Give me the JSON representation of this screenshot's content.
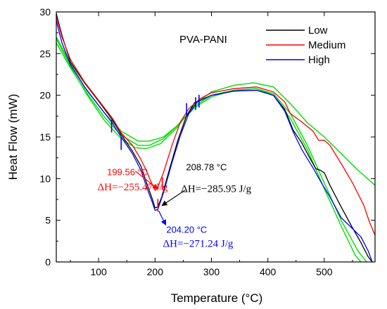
{
  "chart_data": {
    "type": "line",
    "title": "PVA-PANI",
    "xlabel": "Temperature (°C)",
    "ylabel": "Heat Flow (mW)",
    "xlim": [
      25,
      590
    ],
    "ylim": [
      0,
      30
    ],
    "x_ticks": [
      100,
      200,
      300,
      400,
      500
    ],
    "y_ticks": [
      0,
      5,
      10,
      15,
      20,
      25,
      30
    ],
    "legend_position": "top-right",
    "grid": false,
    "series": [
      {
        "name": "Low",
        "color": "#000000",
        "points": [
          [
            25,
            29.8
          ],
          [
            35,
            27.2
          ],
          [
            50,
            24.0
          ],
          [
            75,
            21.5
          ],
          [
            100,
            19.3
          ],
          [
            125,
            17.0
          ],
          [
            140,
            15.3
          ],
          [
            160,
            13.3
          ],
          [
            175,
            11.5
          ],
          [
            185,
            9.5
          ],
          [
            195,
            7.6
          ],
          [
            200,
            6.5
          ],
          [
            205,
            6.6
          ],
          [
            212,
            7.8
          ],
          [
            225,
            11.0
          ],
          [
            240,
            14.5
          ],
          [
            255,
            17.4
          ],
          [
            270,
            19.1
          ],
          [
            300,
            20.0
          ],
          [
            340,
            20.5
          ],
          [
            380,
            20.6
          ],
          [
            410,
            20.0
          ],
          [
            430,
            18.3
          ],
          [
            445,
            15.8
          ],
          [
            460,
            14.3
          ],
          [
            475,
            12.4
          ],
          [
            485,
            11.2
          ],
          [
            493,
            11.0
          ],
          [
            500,
            10.7
          ],
          [
            510,
            9.2
          ],
          [
            530,
            6.6
          ],
          [
            550,
            4.1
          ],
          [
            565,
            2.3
          ],
          [
            578,
            0.6
          ],
          [
            585,
            0.0
          ]
        ]
      },
      {
        "name": "Medium",
        "color": "#ff0000",
        "points": [
          [
            25,
            29.5
          ],
          [
            35,
            27.0
          ],
          [
            50,
            24.3
          ],
          [
            75,
            21.6
          ],
          [
            100,
            19.4
          ],
          [
            125,
            17.2
          ],
          [
            140,
            15.5
          ],
          [
            160,
            14.0
          ],
          [
            175,
            12.3
          ],
          [
            185,
            10.9
          ],
          [
            193,
            9.6
          ],
          [
            200,
            8.6
          ],
          [
            205,
            9.0
          ],
          [
            215,
            10.7
          ],
          [
            230,
            14.0
          ],
          [
            245,
            16.8
          ],
          [
            260,
            18.4
          ],
          [
            280,
            19.6
          ],
          [
            300,
            20.3
          ],
          [
            340,
            20.8
          ],
          [
            380,
            21.0
          ],
          [
            410,
            20.4
          ],
          [
            430,
            19.2
          ],
          [
            440,
            17.8
          ],
          [
            460,
            16.8
          ],
          [
            480,
            15.7
          ],
          [
            490,
            14.6
          ],
          [
            500,
            14.6
          ],
          [
            510,
            14.0
          ],
          [
            530,
            11.8
          ],
          [
            550,
            9.5
          ],
          [
            570,
            6.8
          ],
          [
            580,
            4.8
          ],
          [
            590,
            3.2
          ]
        ]
      },
      {
        "name": "High",
        "color": "#0000ff",
        "points": [
          [
            25,
            29.0
          ],
          [
            35,
            26.3
          ],
          [
            50,
            23.7
          ],
          [
            75,
            21.0
          ],
          [
            100,
            18.8
          ],
          [
            125,
            16.6
          ],
          [
            140,
            15.0
          ],
          [
            160,
            13.0
          ],
          [
            175,
            11.0
          ],
          [
            185,
            9.0
          ],
          [
            195,
            7.2
          ],
          [
            200,
            6.2
          ],
          [
            205,
            6.3
          ],
          [
            215,
            8.3
          ],
          [
            230,
            11.9
          ],
          [
            245,
            15.2
          ],
          [
            260,
            17.8
          ],
          [
            275,
            19.2
          ],
          [
            300,
            20.0
          ],
          [
            340,
            20.5
          ],
          [
            380,
            20.6
          ],
          [
            410,
            20.0
          ],
          [
            430,
            18.1
          ],
          [
            445,
            15.6
          ],
          [
            460,
            13.5
          ],
          [
            480,
            11.3
          ],
          [
            495,
            9.5
          ],
          [
            510,
            7.8
          ],
          [
            530,
            5.3
          ],
          [
            550,
            4.0
          ],
          [
            565,
            3.0
          ],
          [
            578,
            1.3
          ],
          [
            585,
            0.0
          ]
        ]
      }
    ],
    "fit_curves": {
      "color": "#00dd00",
      "curves": [
        [
          [
            25,
            27.0
          ],
          [
            50,
            23.8
          ],
          [
            80,
            20.5
          ],
          [
            110,
            17.9
          ],
          [
            140,
            15.7
          ],
          [
            170,
            14.5
          ],
          [
            190,
            14.5
          ],
          [
            215,
            15.0
          ],
          [
            240,
            16.4
          ],
          [
            270,
            18.5
          ],
          [
            300,
            19.8
          ],
          [
            340,
            20.6
          ],
          [
            380,
            20.8
          ],
          [
            410,
            20.2
          ],
          [
            440,
            17.8
          ],
          [
            470,
            14.0
          ],
          [
            500,
            9.5
          ],
          [
            530,
            5.0
          ],
          [
            560,
            1.3
          ],
          [
            575,
            0.0
          ]
        ],
        [
          [
            25,
            26.3
          ],
          [
            50,
            23.3
          ],
          [
            80,
            20.2
          ],
          [
            110,
            17.4
          ],
          [
            140,
            15.2
          ],
          [
            170,
            14.0
          ],
          [
            190,
            14.0
          ],
          [
            215,
            14.8
          ],
          [
            240,
            16.4
          ],
          [
            270,
            18.7
          ],
          [
            300,
            20.0
          ],
          [
            340,
            20.6
          ],
          [
            380,
            20.8
          ],
          [
            410,
            20.0
          ],
          [
            440,
            17.2
          ],
          [
            470,
            13.5
          ],
          [
            500,
            8.8
          ],
          [
            530,
            4.3
          ],
          [
            555,
            0.8
          ],
          [
            565,
            0.0
          ]
        ],
        [
          [
            25,
            26.8
          ],
          [
            50,
            23.5
          ],
          [
            80,
            20.0
          ],
          [
            110,
            17.0
          ],
          [
            140,
            14.8
          ],
          [
            165,
            13.7
          ],
          [
            185,
            13.6
          ],
          [
            210,
            14.2
          ],
          [
            240,
            16.2
          ],
          [
            270,
            18.9
          ],
          [
            300,
            20.4
          ],
          [
            340,
            21.2
          ],
          [
            375,
            21.5
          ],
          [
            410,
            21.0
          ],
          [
            440,
            19.0
          ],
          [
            470,
            16.7
          ],
          [
            500,
            15.0
          ],
          [
            530,
            13.0
          ],
          [
            560,
            11.0
          ],
          [
            590,
            9.2
          ]
        ]
      ]
    },
    "markers": [
      {
        "color": "#0000ff",
        "x": 123,
        "y": 16.3
      },
      {
        "color": "#0000ff",
        "x": 140,
        "y": 14.2
      },
      {
        "color": "#0000ff",
        "x": 256,
        "y": 18.3
      },
      {
        "color": "#0000ff",
        "x": 272,
        "y": 19.0
      },
      {
        "color": "#0000ff",
        "x": 278,
        "y": 19.3
      },
      {
        "color": "#ff0000",
        "x": 205,
        "y": 6.8
      },
      {
        "color": "#ff0000",
        "x": 213,
        "y": 9.4
      }
    ],
    "annotations": [
      {
        "temp": "199.56 °C",
        "dh": "ΔH=−255.47 J/g",
        "color": "#ff0000",
        "point": [
          200,
          8.6
        ],
        "text_at": [
          115,
          10.0
        ],
        "arrow_from": [
          165,
          10.9
        ]
      },
      {
        "temp": "208.78 °C",
        "dh": "ΔH=−285.95 J/g",
        "color": "#000000",
        "point": [
          205,
          6.6
        ],
        "text_at": [
          248,
          10.0
        ],
        "arrow_from": [
          253,
          8.6
        ]
      },
      {
        "temp": "204.20 °C",
        "dh": "ΔH=−271.24 J/g",
        "color": "#0000ff",
        "point": [
          204,
          6.3
        ],
        "text_at": [
          225,
          3.0
        ],
        "arrow_from": [
          204,
          6.3
        ]
      }
    ]
  }
}
